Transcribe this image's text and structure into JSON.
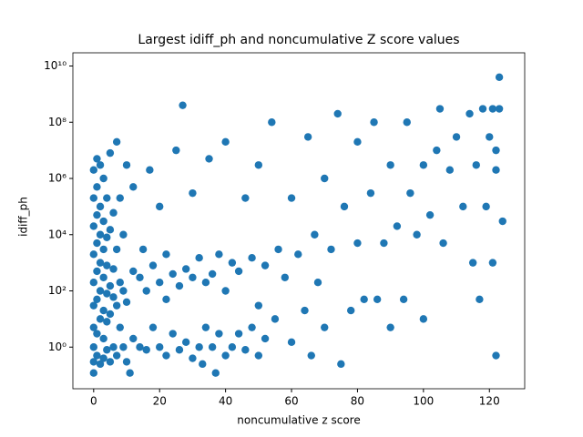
{
  "chart_data": {
    "type": "scatter",
    "title": "Largest idiff_ph and noncumulative Z score values",
    "x_label": "noncumulative z score",
    "y_label": "idiff_ph",
    "color": "#1f77b4",
    "yscale": "log",
    "xlim": [
      -6.3,
      130.7
    ],
    "ylim": [
      0.033,
      29500000000
    ],
    "xticks": [
      0,
      20,
      40,
      60,
      80,
      100,
      120
    ],
    "yticks": [
      {
        "value": 1,
        "label": "10⁰"
      },
      {
        "value": 100,
        "label": "10²"
      },
      {
        "value": 10000,
        "label": "10⁴"
      },
      {
        "value": 1000000,
        "label": "10⁶"
      },
      {
        "value": 100000000,
        "label": "10⁸"
      },
      {
        "value": 10000000000,
        "label": "10¹⁰"
      }
    ],
    "x": [
      0,
      0,
      0,
      0,
      0,
      0,
      0,
      0,
      0,
      0,
      1,
      1,
      1,
      1,
      1,
      1,
      1,
      1,
      2,
      2,
      2,
      2,
      2,
      2,
      2,
      3,
      3,
      3,
      3,
      3,
      3,
      3,
      4,
      4,
      4,
      4,
      4,
      4,
      5,
      5,
      5,
      5,
      5,
      6,
      6,
      6,
      6,
      7,
      7,
      7,
      7,
      8,
      8,
      8,
      9,
      9,
      9,
      10,
      10,
      10,
      11,
      12,
      12,
      12,
      14,
      14,
      15,
      16,
      16,
      17,
      18,
      18,
      20,
      20,
      20,
      22,
      22,
      22,
      24,
      24,
      25,
      26,
      26,
      27,
      28,
      28,
      30,
      30,
      30,
      32,
      32,
      33,
      34,
      34,
      35,
      36,
      36,
      37,
      38,
      38,
      40,
      40,
      40,
      42,
      42,
      44,
      44,
      46,
      46,
      48,
      48,
      50,
      50,
      50,
      52,
      52,
      54,
      55,
      56,
      58,
      60,
      60,
      62,
      64,
      65,
      66,
      67,
      68,
      70,
      70,
      72,
      74,
      75,
      76,
      78,
      80,
      80,
      82,
      84,
      85,
      86,
      88,
      90,
      90,
      92,
      94,
      95,
      96,
      98,
      100,
      100,
      102,
      104,
      105,
      106,
      108,
      110,
      112,
      114,
      115,
      116,
      117,
      118,
      119,
      120,
      121,
      122,
      122,
      123,
      123,
      124,
      121,
      122
    ],
    "values": [
      0.12,
      0.3,
      1,
      5,
      30,
      200,
      2000,
      20000,
      200000,
      2000000,
      0.5,
      3,
      50,
      500,
      5000,
      50000,
      500000,
      5000000,
      0.25,
      10,
      100,
      1000,
      10000,
      100000,
      3000000,
      0.4,
      2,
      20,
      300,
      3000,
      30000,
      1000000,
      0.8,
      8,
      80,
      800,
      8000,
      200000,
      0.3,
      15,
      150,
      15000,
      8000000,
      1,
      60,
      600,
      60000,
      0.5,
      30,
      3000,
      20000000,
      5,
      200,
      200000,
      1,
      100,
      10000,
      0.3,
      40,
      3000000,
      0.12,
      2,
      500,
      500000,
      1,
      300,
      3000,
      0.8,
      100,
      2000000,
      5,
      800,
      1,
      200,
      100000,
      0.5,
      50,
      2000,
      3,
      400,
      10000000,
      0.8,
      150,
      400000000,
      1.5,
      600,
      300,
      0.4,
      300000,
      1,
      1500,
      0.25,
      5,
      200,
      5000000,
      1,
      400,
      0.12,
      3,
      2000,
      0.5,
      100,
      20000000,
      1,
      1000,
      3,
      500,
      0.8,
      200000,
      5,
      1500,
      0.5,
      30,
      3000000,
      2,
      800,
      100000000,
      10,
      3000,
      300,
      1.5,
      200000,
      2000,
      20,
      30000000,
      0.5,
      10000,
      200,
      5,
      1000000,
      3000,
      200000000,
      0.25,
      100000,
      20,
      5000,
      20000000,
      50,
      300000,
      100000000,
      50,
      5000,
      5,
      3000000,
      20000,
      50,
      100000000,
      300000,
      10000,
      10,
      3000000,
      50000,
      10000000,
      300000000,
      5000,
      2000000,
      30000000,
      100000,
      200000000,
      1000,
      3000000,
      50,
      300000000,
      100000,
      30000000,
      300000000,
      0.5,
      10000000,
      300000000,
      4000000000,
      30000,
      1000,
      2000000
    ]
  }
}
